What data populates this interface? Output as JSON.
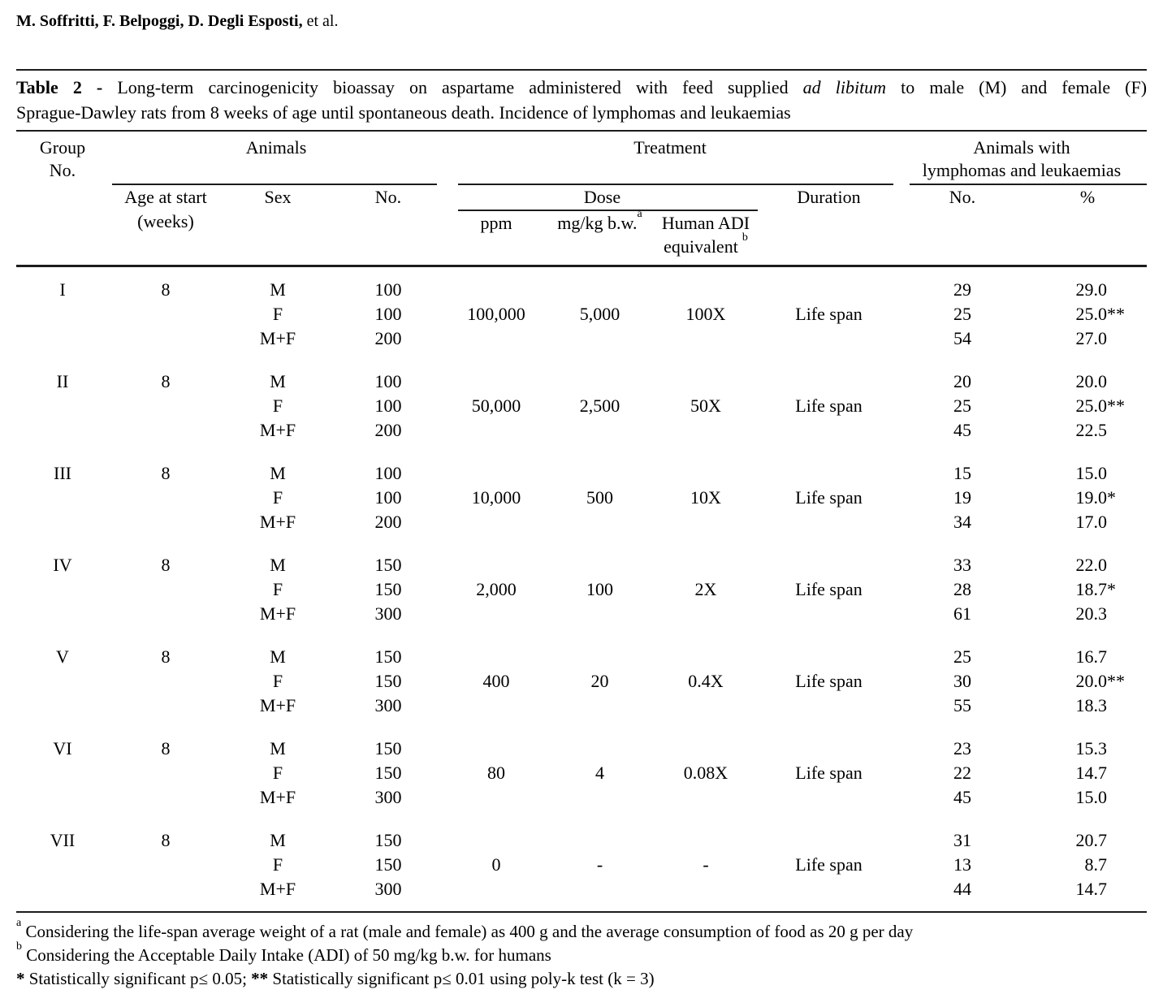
{
  "page": {
    "authors_bold": "M. Soffritti, F. Belpoggi, D. Degli Esposti,",
    "authors_rest": "et al."
  },
  "caption": {
    "label": "Table 2 -",
    "line1_text": "Long-term carcinogenicity bioassay on aspartame administered with feed supplied",
    "line1_italic": "ad libitum",
    "line1_end": "to male (M) and female (F)",
    "line2": "Sprague-Dawley rats from 8 weeks of age until spontaneous death. Incidence of lymphomas and leukaemias"
  },
  "header": {
    "group_l1": "Group",
    "group_l2": "No.",
    "animals": "Animals",
    "treatment": "Treatment",
    "lymph_l1": "Animals with",
    "lymph_l2": "lymphomas and leukaemias",
    "age_l1": "Age at start",
    "age_l2": "(weeks)",
    "sex": "Sex",
    "no": "No.",
    "dose": "Dose",
    "duration": "Duration",
    "ppm": "ppm",
    "mgkg": "mg/kg b.w.",
    "mgkg_sup": "a",
    "adi_l1": "Human ADI",
    "adi_l2": "equivalent",
    "adi_sup": "b",
    "no2": "No.",
    "pct": "%"
  },
  "groups": [
    {
      "no": "I",
      "age": "8",
      "sex": [
        "M",
        "F",
        "M+F"
      ],
      "n": [
        "100",
        "100",
        "200"
      ],
      "ppm": "100,000",
      "mgkg": "5,000",
      "adi": "100X",
      "duration": "Life span",
      "count": [
        "29",
        "25",
        "54"
      ],
      "pct": [
        {
          "v": "29.0",
          "m": ""
        },
        {
          "v": "25.0",
          "m": "**"
        },
        {
          "v": "27.0",
          "m": ""
        }
      ]
    },
    {
      "no": "II",
      "age": "8",
      "sex": [
        "M",
        "F",
        "M+F"
      ],
      "n": [
        "100",
        "100",
        "200"
      ],
      "ppm": "50,000",
      "mgkg": "2,500",
      "adi": "50X",
      "duration": "Life span",
      "count": [
        "20",
        "25",
        "45"
      ],
      "pct": [
        {
          "v": "20.0",
          "m": ""
        },
        {
          "v": "25.0",
          "m": "**"
        },
        {
          "v": "22.5",
          "m": ""
        }
      ]
    },
    {
      "no": "III",
      "age": "8",
      "sex": [
        "M",
        "F",
        "M+F"
      ],
      "n": [
        "100",
        "100",
        "200"
      ],
      "ppm": "10,000",
      "mgkg": "500",
      "adi": "10X",
      "duration": "Life span",
      "count": [
        "15",
        "19",
        "34"
      ],
      "pct": [
        {
          "v": "15.0",
          "m": ""
        },
        {
          "v": "19.0",
          "m": "*"
        },
        {
          "v": "17.0",
          "m": ""
        }
      ]
    },
    {
      "no": "IV",
      "age": "8",
      "sex": [
        "M",
        "F",
        "M+F"
      ],
      "n": [
        "150",
        "150",
        "300"
      ],
      "ppm": "2,000",
      "mgkg": "100",
      "adi": "2X",
      "duration": "Life span",
      "count": [
        "33",
        "28",
        "61"
      ],
      "pct": [
        {
          "v": "22.0",
          "m": ""
        },
        {
          "v": "18.7",
          "m": "*"
        },
        {
          "v": "20.3",
          "m": ""
        }
      ]
    },
    {
      "no": "V",
      "age": "8",
      "sex": [
        "M",
        "F",
        "M+F"
      ],
      "n": [
        "150",
        "150",
        "300"
      ],
      "ppm": "400",
      "mgkg": "20",
      "adi": "0.4X",
      "duration": "Life span",
      "count": [
        "25",
        "30",
        "55"
      ],
      "pct": [
        {
          "v": "16.7",
          "m": ""
        },
        {
          "v": "20.0",
          "m": "**"
        },
        {
          "v": "18.3",
          "m": ""
        }
      ]
    },
    {
      "no": "VI",
      "age": "8",
      "sex": [
        "M",
        "F",
        "M+F"
      ],
      "n": [
        "150",
        "150",
        "300"
      ],
      "ppm": "80",
      "mgkg": "4",
      "adi": "0.08X",
      "duration": "Life span",
      "count": [
        "23",
        "22",
        "45"
      ],
      "pct": [
        {
          "v": "15.3",
          "m": ""
        },
        {
          "v": "14.7",
          "m": ""
        },
        {
          "v": "15.0",
          "m": ""
        }
      ]
    },
    {
      "no": "VII",
      "age": "8",
      "sex": [
        "M",
        "F",
        "M+F"
      ],
      "n": [
        "150",
        "150",
        "300"
      ],
      "ppm": "0",
      "mgkg": "-",
      "adi": "-",
      "duration": "Life span",
      "count": [
        "31",
        "13",
        "44"
      ],
      "pct": [
        {
          "v": "20.7",
          "m": ""
        },
        {
          "v": "8.7",
          "m": ""
        },
        {
          "v": "14.7",
          "m": ""
        }
      ]
    }
  ],
  "footnotes": {
    "a_marker": "a",
    "a_text": "Considering the life-span average weight of a rat (male and female) as 400 g and the average consumption of food as 20 g per day",
    "b_marker": "b",
    "b_text": "Considering the Acceptable Daily Intake (ADI) of 50 mg/kg b.w. for humans",
    "sig1_marker": "*",
    "sig1_text": "Statistically significant p≤ 0.05;",
    "sig2_marker": "**",
    "sig2_text": "Statistically significant p≤ 0.01 using poly-k test (k = 3)"
  }
}
